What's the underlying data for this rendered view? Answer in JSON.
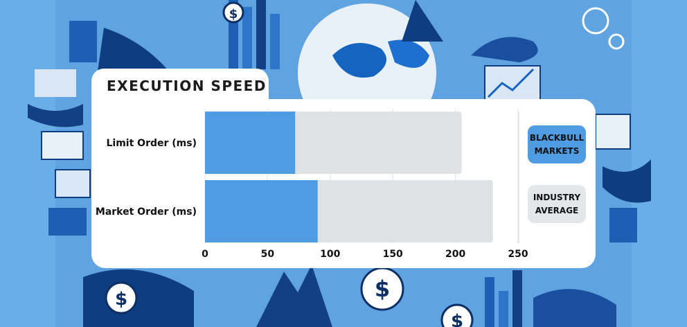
{
  "chart_data": {
    "type": "bar",
    "orientation": "horizontal",
    "title": "EXECUTION SPEED",
    "categories": [
      "Limit Order (ms)",
      "Market Order (ms)"
    ],
    "series": [
      {
        "name": "BLACKBULL MARKETS",
        "values": [
          72,
          90
        ]
      },
      {
        "name": "INDUSTRY AVERAGE",
        "values": [
          205,
          230
        ]
      }
    ],
    "xlim": [
      0,
      250
    ],
    "xticks": [
      0,
      50,
      100,
      150,
      200,
      250
    ],
    "grid": true,
    "legend_placement": "right"
  },
  "legend": {
    "blackbull_line1": "BLACKBULL",
    "blackbull_line2": "MARKETS",
    "industry_line1": "INDUSTRY",
    "industry_line2": "AVERAGE"
  },
  "colors": {
    "blackbull": "#4f9ce3",
    "industry": "#dfe2e5",
    "background": "#5fa3e0",
    "text": "#111111"
  }
}
